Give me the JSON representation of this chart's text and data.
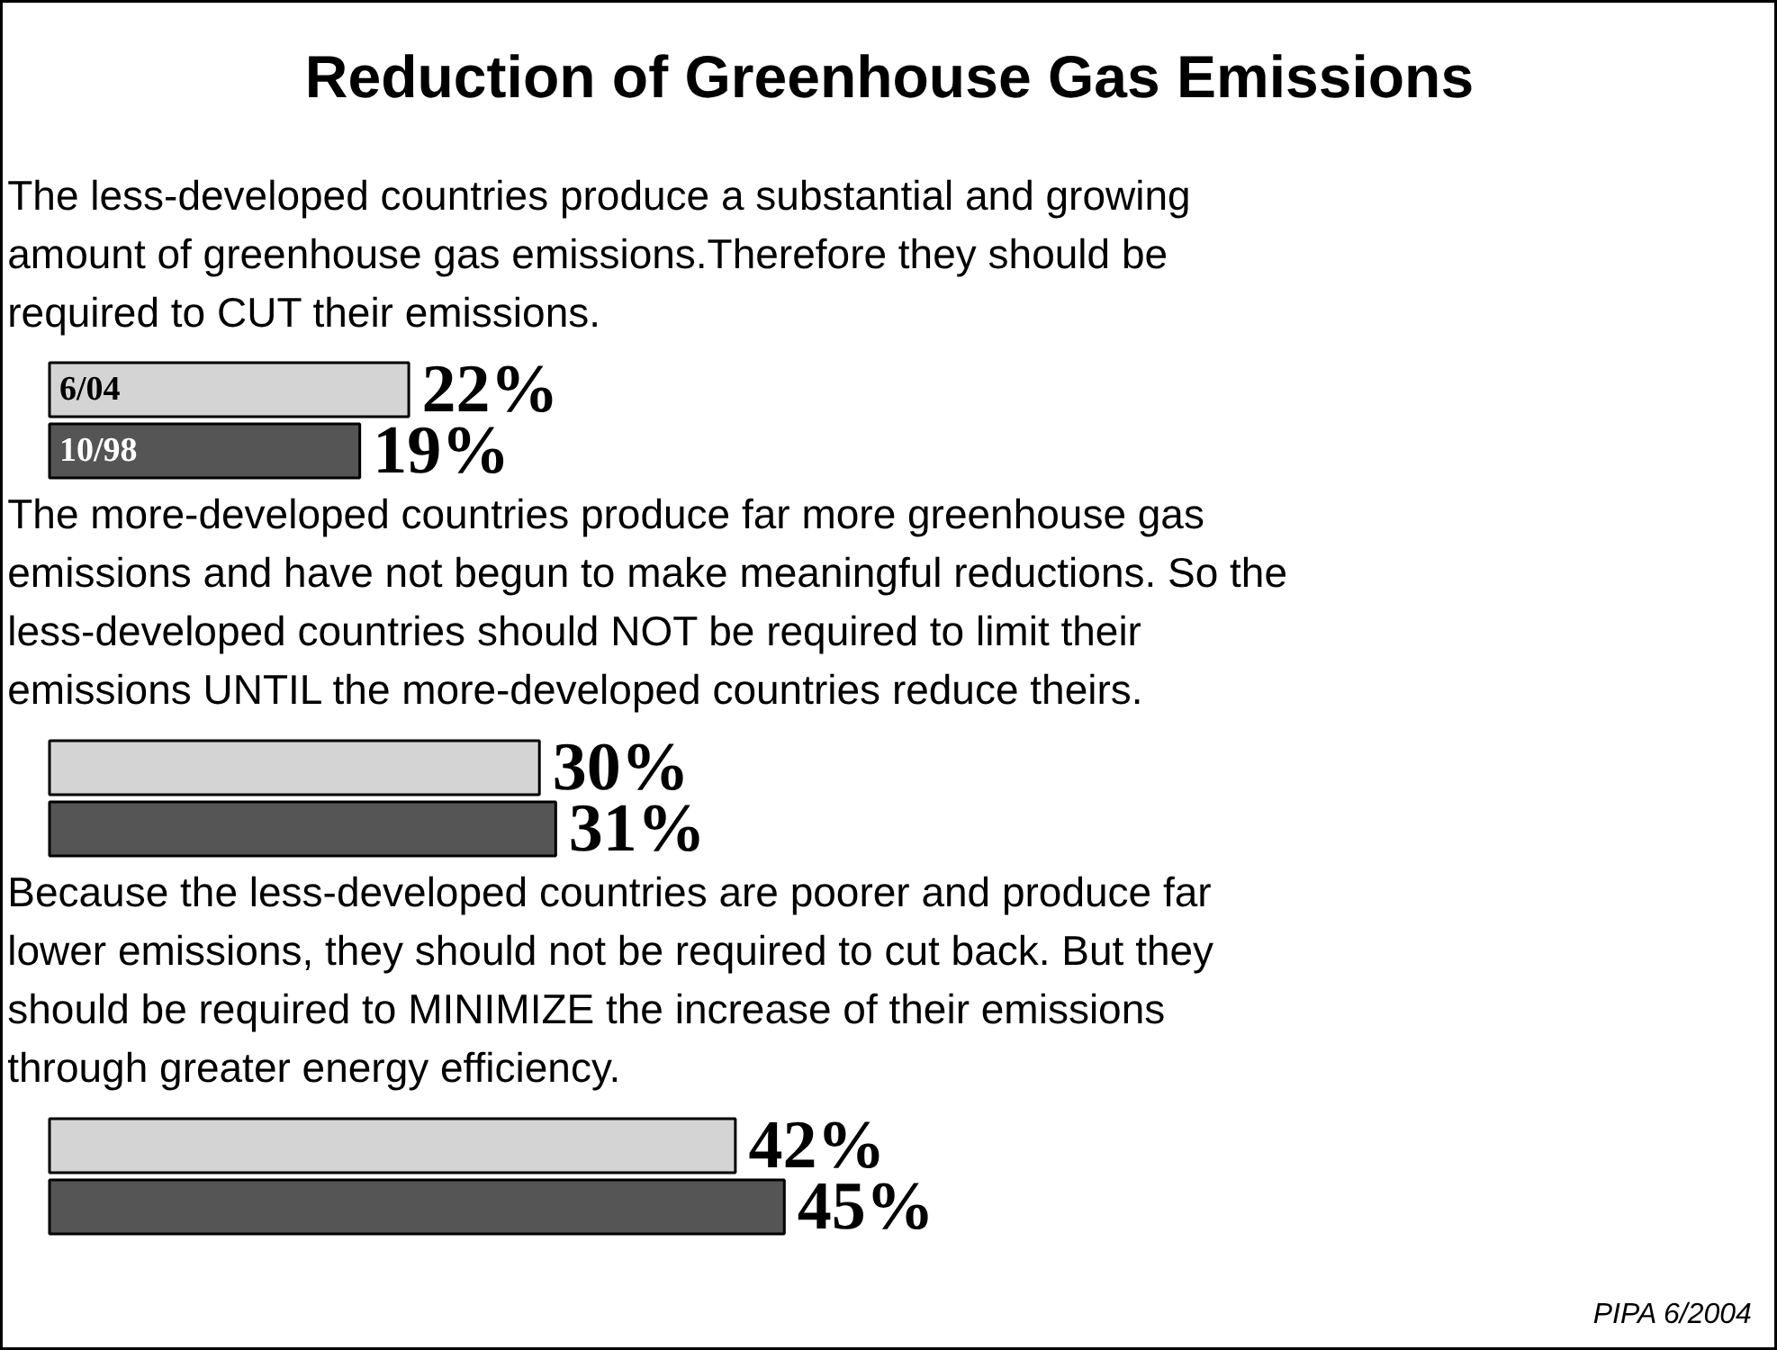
{
  "chart_data": {
    "type": "bar",
    "orientation": "horizontal",
    "title": "Reduction of Greenhouse Gas Emissions",
    "categories": [
      "The less-developed countries produce a substantial and growing amount of greenhouse gas emissions.Therefore they should be required to CUT their emissions.",
      "The more-developed countries produce far more greenhouse gas emissions and have not begun to make meaningful reductions. So the less-developed countries should NOT be required to limit their emissions UNTIL the more-developed countries reduce theirs.",
      "Because the less-developed countries are poorer and produce far lower emissions, they should not be required to cut back. But they should be required to MINIMIZE the increase of their emissions through greater energy efficiency."
    ],
    "series": [
      {
        "name": "6/04",
        "color": "#d4d4d4",
        "values": [
          22,
          30,
          42
        ],
        "value_labels": [
          "22%",
          "30%",
          "42%"
        ]
      },
      {
        "name": "10/98",
        "color": "#555555",
        "values": [
          19,
          31,
          45
        ],
        "value_labels": [
          "19%",
          "31%",
          "45%"
        ]
      }
    ],
    "annotations": [
      "PIPA 6/2004"
    ]
  }
}
